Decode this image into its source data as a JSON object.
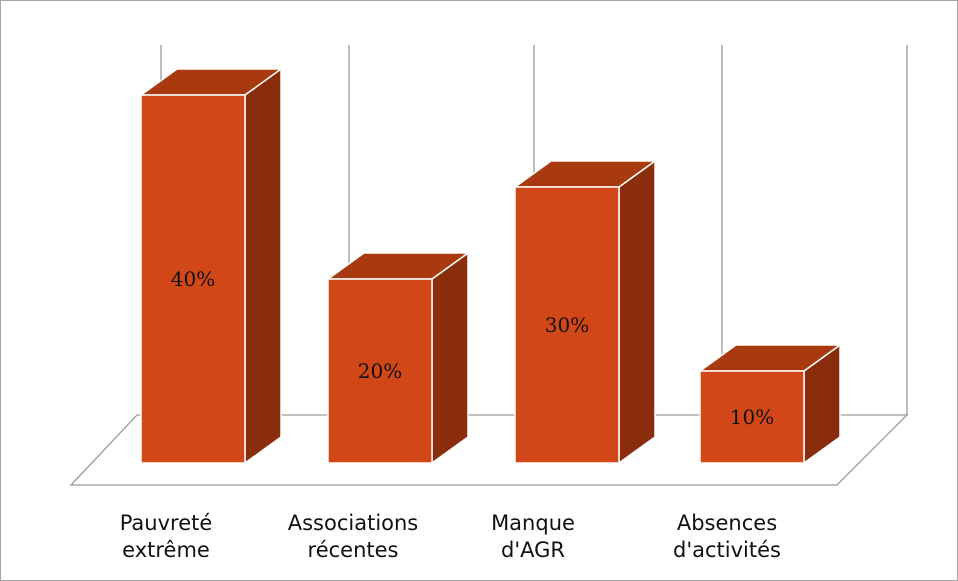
{
  "chart_data": {
    "type": "bar",
    "title": "",
    "xlabel": "",
    "ylabel": "",
    "categories": [
      [
        "Pauvreté",
        "extrême"
      ],
      [
        "Associations",
        "récentes"
      ],
      [
        "Manque",
        "d'AGR"
      ],
      [
        "Absences",
        "d'activités"
      ]
    ],
    "values": [
      40,
      20,
      30,
      10
    ],
    "value_labels": [
      "40%",
      "20%",
      "30%",
      "10%"
    ],
    "ylim": [
      0,
      40
    ],
    "grid": "vertical",
    "style": "3d-column",
    "colors": {
      "front": "#d14718",
      "top": "#a93a0f",
      "side": "#8a2d0c",
      "grid": "#9a9a9a"
    }
  }
}
